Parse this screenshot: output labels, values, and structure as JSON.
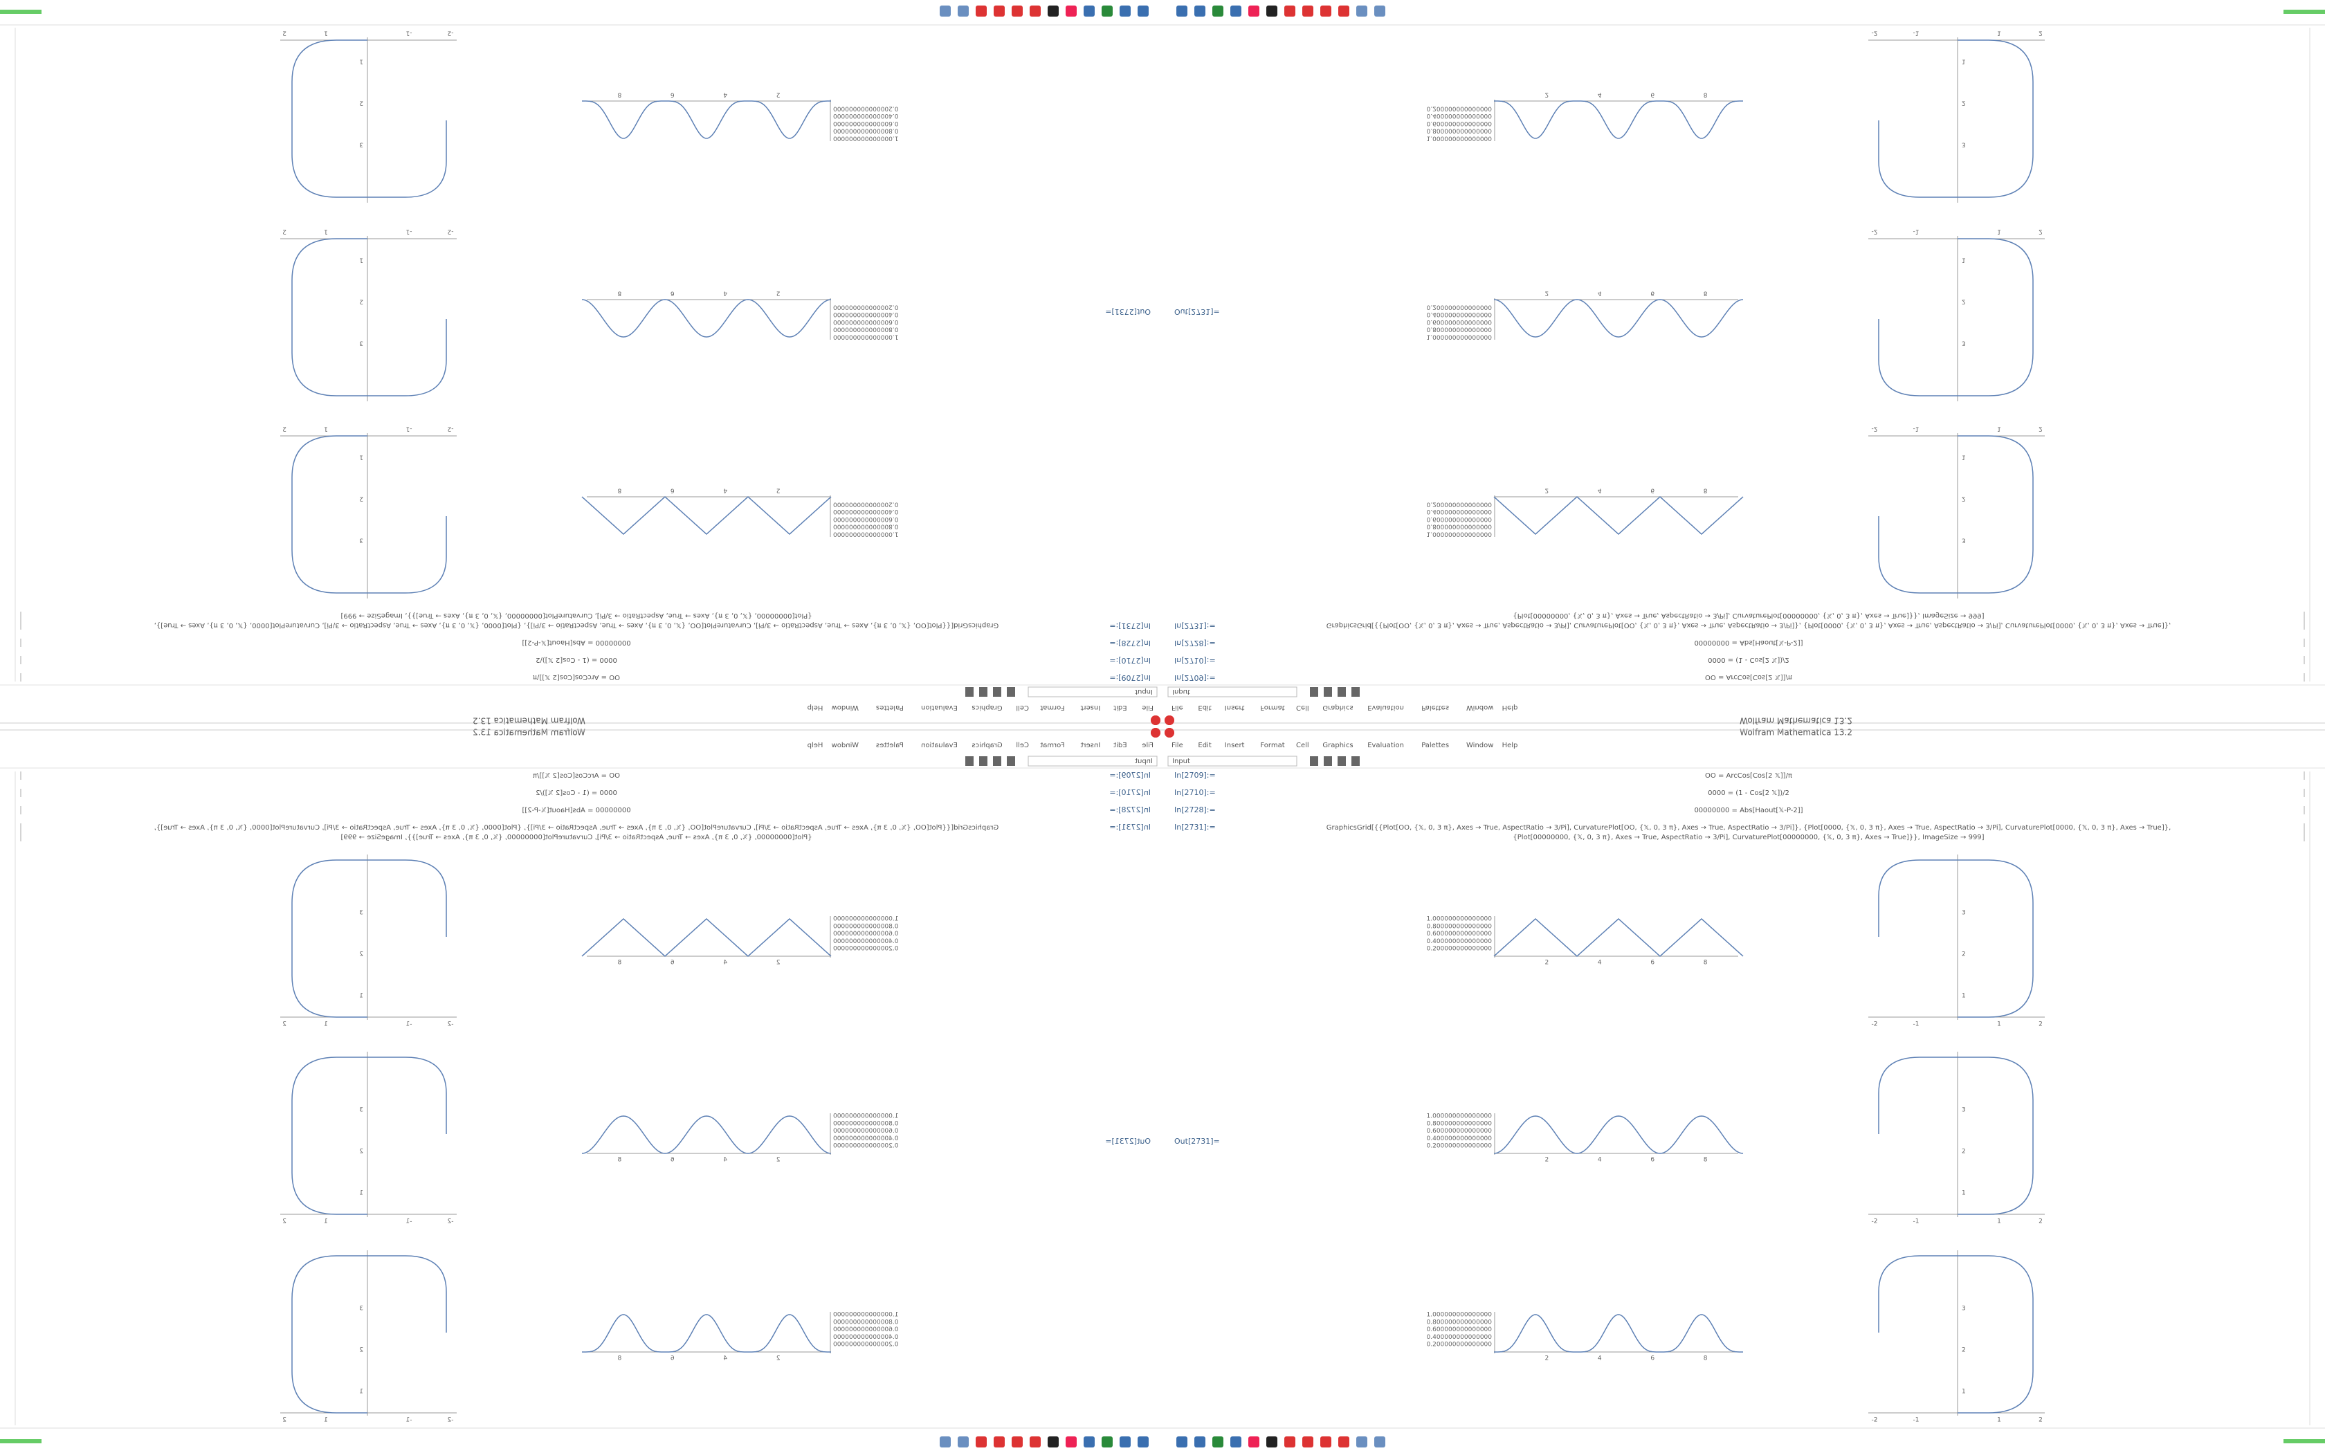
{
  "window_title": "Wolfram Mathematica 13.2",
  "menu": [
    "File",
    "Edit",
    "Insert",
    "Format",
    "Cell",
    "Graphics",
    "Evaluation",
    "Palettes",
    "Window",
    "Help"
  ],
  "style_box": "Input",
  "cells": [
    {
      "label": "In[2709]:=",
      "code": [
        "OO = ArcCos[Cos[2 𝕏]]/π"
      ]
    },
    {
      "label": "In[2710]:=",
      "code": [
        "0000 = (1 - Cos[2 𝕏])/2"
      ]
    },
    {
      "label": "In[2728]:=",
      "code": [
        "00000000 = Abs[Haout[𝕏-P-2]]"
      ]
    },
    {
      "label": "In[2731]:=",
      "code": [
        "GraphicsGrid[{{Plot[OO, {𝕏, 0, 3 π}, Axes → True, AspectRatio → 3/Pi], CurvaturePlot[OO, {𝕏, 0, 3 π}, Axes → True, AspectRatio → 3/Pi]}, {Plot[0000, {𝕏, 0, 3 π}, Axes → True, AspectRatio → 3/Pi], CurvaturePlot[0000, {𝕏, 0, 3 π}, Axes → True]},",
        "{Plot[00000000, {𝕏, 0, 3 π}, Axes → True, AspectRatio → 3/Pi], CurvaturePlot[00000000, {𝕏, 0, 3 π}, Axes → True]}}, ImageSize → 999]"
      ]
    }
  ],
  "output_label": "Out[2731]=",
  "plots": {
    "wave_xticks": [
      "2",
      "4",
      "6",
      "8"
    ],
    "wave_yticks": [
      "1.000000000000000",
      "0.800000000000000",
      "0.600000000000000",
      "0.400000000000000",
      "0.200000000000000"
    ],
    "curv_xticks": [
      "-2",
      "-1",
      "1",
      "2"
    ],
    "curv_yticks": [
      "1",
      "2",
      "3"
    ]
  }
}
